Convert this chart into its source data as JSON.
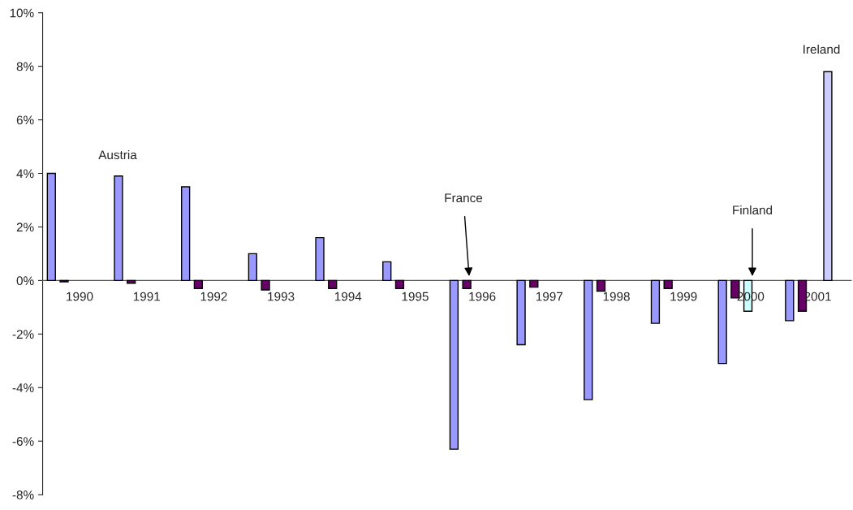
{
  "chart_data": {
    "type": "bar",
    "categories": [
      "1990",
      "1991",
      "1992",
      "1993",
      "1994",
      "1995",
      "1996",
      "1997",
      "1998",
      "1999",
      "2000",
      "2001"
    ],
    "series": [
      {
        "color": "#9999ff",
        "values": [
          4.0,
          3.9,
          3.5,
          1.0,
          1.6,
          0.7,
          -6.3,
          -2.4,
          -4.45,
          -1.6,
          -3.1,
          -1.5
        ]
      },
      {
        "color": "#660066",
        "values": [
          -0.05,
          -0.1,
          -0.3,
          -0.35,
          -0.3,
          -0.3,
          -0.3,
          -0.25,
          -0.4,
          -0.3,
          -0.65,
          -1.15
        ]
      },
      {
        "color": "#ccffff",
        "values": [
          null,
          null,
          null,
          null,
          null,
          null,
          null,
          null,
          null,
          null,
          -1.15,
          null
        ]
      },
      {
        "color": "#ccccff",
        "values": [
          null,
          null,
          null,
          null,
          null,
          null,
          null,
          null,
          null,
          null,
          null,
          7.8
        ]
      }
    ],
    "ylim": [
      -8,
      10
    ],
    "yticks": [
      {
        "value": -8,
        "label": "-8%"
      },
      {
        "value": -6,
        "label": "-6%"
      },
      {
        "value": -4,
        "label": "-4%"
      },
      {
        "value": -2,
        "label": "-2%"
      },
      {
        "value": 0,
        "label": "0%"
      },
      {
        "value": 2,
        "label": "2%"
      },
      {
        "value": 4,
        "label": "4%"
      },
      {
        "value": 6,
        "label": "6%"
      },
      {
        "value": 8,
        "label": "8%"
      },
      {
        "value": 10,
        "label": "10%"
      }
    ],
    "grid": false,
    "legend": false,
    "annotations": [
      "Austria",
      "France",
      "Finland",
      "Ireland"
    ]
  }
}
